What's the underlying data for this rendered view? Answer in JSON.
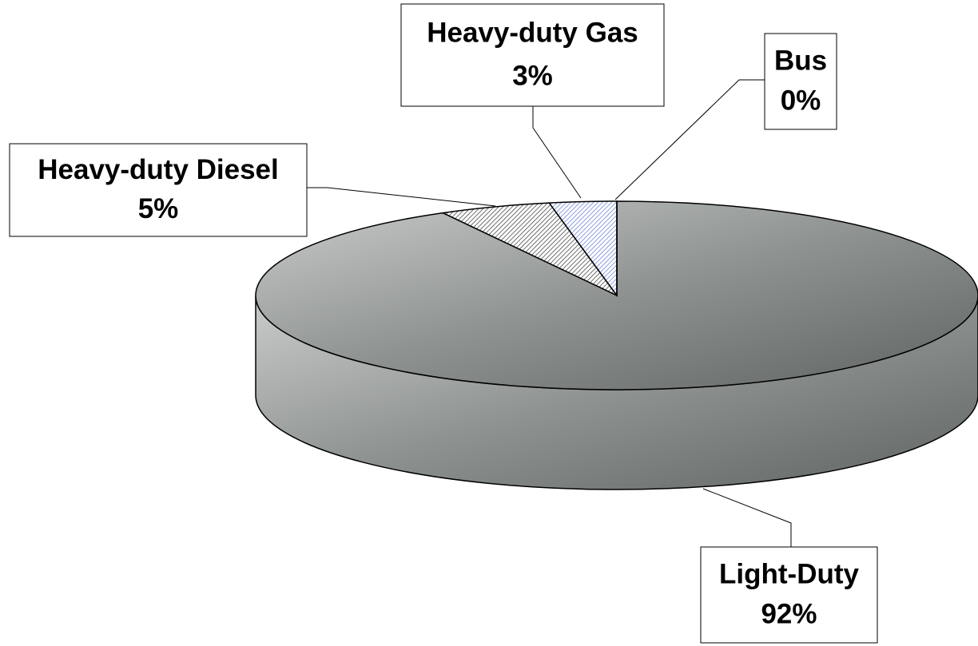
{
  "chart_data": {
    "type": "pie",
    "categories": [
      "Light-Duty",
      "Heavy-duty Diesel",
      "Heavy-duty Gas",
      "Bus"
    ],
    "values": [
      92,
      5,
      3,
      0
    ],
    "value_labels": [
      "92%",
      "5%",
      "3%",
      "0%"
    ],
    "colors": [
      "#8e9290",
      "#4a4a4a",
      "#6f86d8",
      "#ffffff"
    ]
  }
}
